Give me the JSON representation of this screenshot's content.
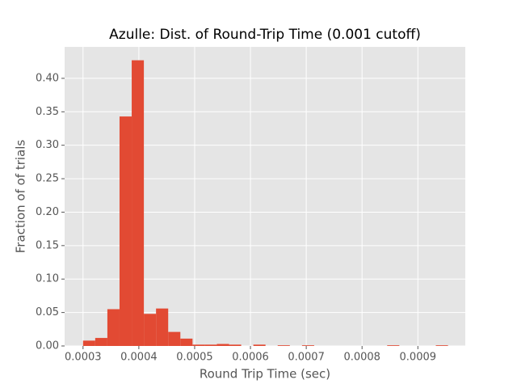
{
  "chart_data": {
    "type": "histogram",
    "title": "Azulle: Dist. of Round-Trip Time (0.001 cutoff)",
    "x_label": "Round Trip Time (sec)",
    "y_label": "Fraction of of trials",
    "bins": [
      0.0003,
      0.0003218,
      0.0003436,
      0.0003654,
      0.0003872,
      0.000409,
      0.0004308,
      0.0004526,
      0.0004744,
      0.0004962,
      0.000518,
      0.0005398,
      0.0005616,
      0.0005834,
      0.0006052,
      0.000627,
      0.0006488,
      0.0006706,
      0.0006924,
      0.0007142,
      0.000736,
      0.0007578,
      0.0007796,
      0.0008014,
      0.0008232,
      0.000845,
      0.0008668,
      0.0008886,
      0.0009104,
      0.0009322,
      0.000954
    ],
    "counts": [
      0.008,
      0.012,
      0.055,
      0.343,
      0.427,
      0.048,
      0.056,
      0.021,
      0.011,
      0.002,
      0.002,
      0.003,
      0.002,
      0,
      0.002,
      0,
      0.001,
      0,
      0.001,
      0,
      0,
      0,
      0,
      0,
      0,
      0.001,
      0,
      0,
      0,
      0.001
    ],
    "color": "#e24a33",
    "background": "#e5e5e5",
    "grid": true,
    "xlim": [
      0.000267,
      0.000985
    ],
    "ylim": [
      0,
      0.447
    ],
    "xticks": [
      0.0003,
      0.0004,
      0.0005,
      0.0006,
      0.0007,
      0.0008,
      0.0009
    ],
    "yticks": [
      {
        "value": 0,
        "label": "0.00"
      },
      {
        "value": 0.05,
        "label": "0.05"
      },
      {
        "value": 0.1,
        "label": "0.10"
      },
      {
        "value": 0.15,
        "label": "0.15"
      },
      {
        "value": 0.2,
        "label": "0.20"
      },
      {
        "value": 0.25,
        "label": "0.25"
      },
      {
        "value": 0.3,
        "label": "0.30"
      },
      {
        "value": 0.35,
        "label": "0.35"
      },
      {
        "value": 0.4,
        "label": "0.40"
      }
    ]
  }
}
